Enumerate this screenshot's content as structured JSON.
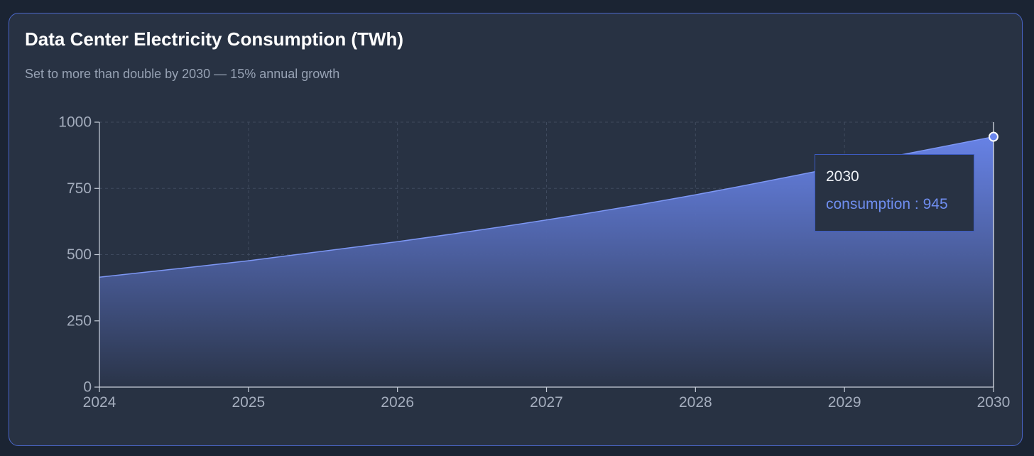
{
  "title": "Data Center Electricity Consumption (TWh)",
  "subtitle": "Set to more than double by 2030 — 15% annual growth",
  "colors": {
    "card_border": "#4a66c8",
    "area_top": "#6a86ee",
    "area_bottom": "#2a3448",
    "line": "#7d97f4",
    "active_dot": "#6a86ee"
  },
  "tooltip": {
    "title": "2030",
    "series_label": "consumption",
    "separator": " : ",
    "value": "945"
  },
  "chart_data": {
    "type": "area",
    "title": "Data Center Electricity Consumption (TWh)",
    "subtitle": "Set to more than double by 2030 — 15% annual growth",
    "xlabel": "",
    "ylabel": "",
    "x": [
      2024,
      2025,
      2026,
      2027,
      2028,
      2029,
      2030
    ],
    "x_tick_labels": [
      "2024",
      "2025",
      "2026",
      "2027",
      "2028",
      "2029",
      "2030"
    ],
    "series": [
      {
        "name": "consumption",
        "values": [
          415,
          477,
          549,
          631,
          726,
          835,
          945
        ]
      }
    ],
    "ylim": [
      0,
      1000
    ],
    "y_ticks": [
      0,
      250,
      500,
      750,
      1000
    ],
    "y_tick_labels": [
      "0",
      "250",
      "500",
      "750",
      "1000"
    ],
    "grid": true,
    "legend": "none",
    "active_point": {
      "x": 2030,
      "value": 945
    }
  }
}
